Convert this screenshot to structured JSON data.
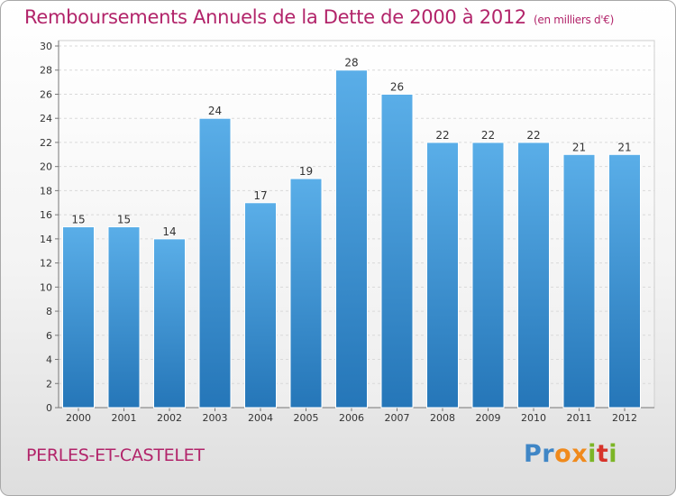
{
  "title": "Remboursements Annuels de la Dette de 2000 à 2012",
  "unit_note": "(en milliers d'€)",
  "commune": "PERLES-ET-CASTELET",
  "logo": {
    "text": "Proxiti"
  },
  "colors": {
    "title": "#b2246a",
    "bar_top": "#5aaee8",
    "bar_bottom": "#2576b8"
  },
  "chart_data": {
    "type": "bar",
    "title": "Remboursements Annuels de la Dette de 2000 à 2012",
    "xlabel": "",
    "ylabel": "",
    "categories": [
      "2000",
      "2001",
      "2002",
      "2003",
      "2004",
      "2005",
      "2006",
      "2007",
      "2008",
      "2009",
      "2010",
      "2011",
      "2012"
    ],
    "values": [
      15,
      15,
      14,
      24,
      17,
      19,
      28,
      26,
      22,
      22,
      22,
      21,
      21
    ],
    "ylim": [
      0,
      30
    ],
    "yticks": [
      0,
      2,
      4,
      6,
      8,
      10,
      12,
      14,
      16,
      18,
      20,
      22,
      24,
      26,
      28,
      30
    ],
    "grid": true,
    "data_labels": true,
    "legend": "none"
  }
}
